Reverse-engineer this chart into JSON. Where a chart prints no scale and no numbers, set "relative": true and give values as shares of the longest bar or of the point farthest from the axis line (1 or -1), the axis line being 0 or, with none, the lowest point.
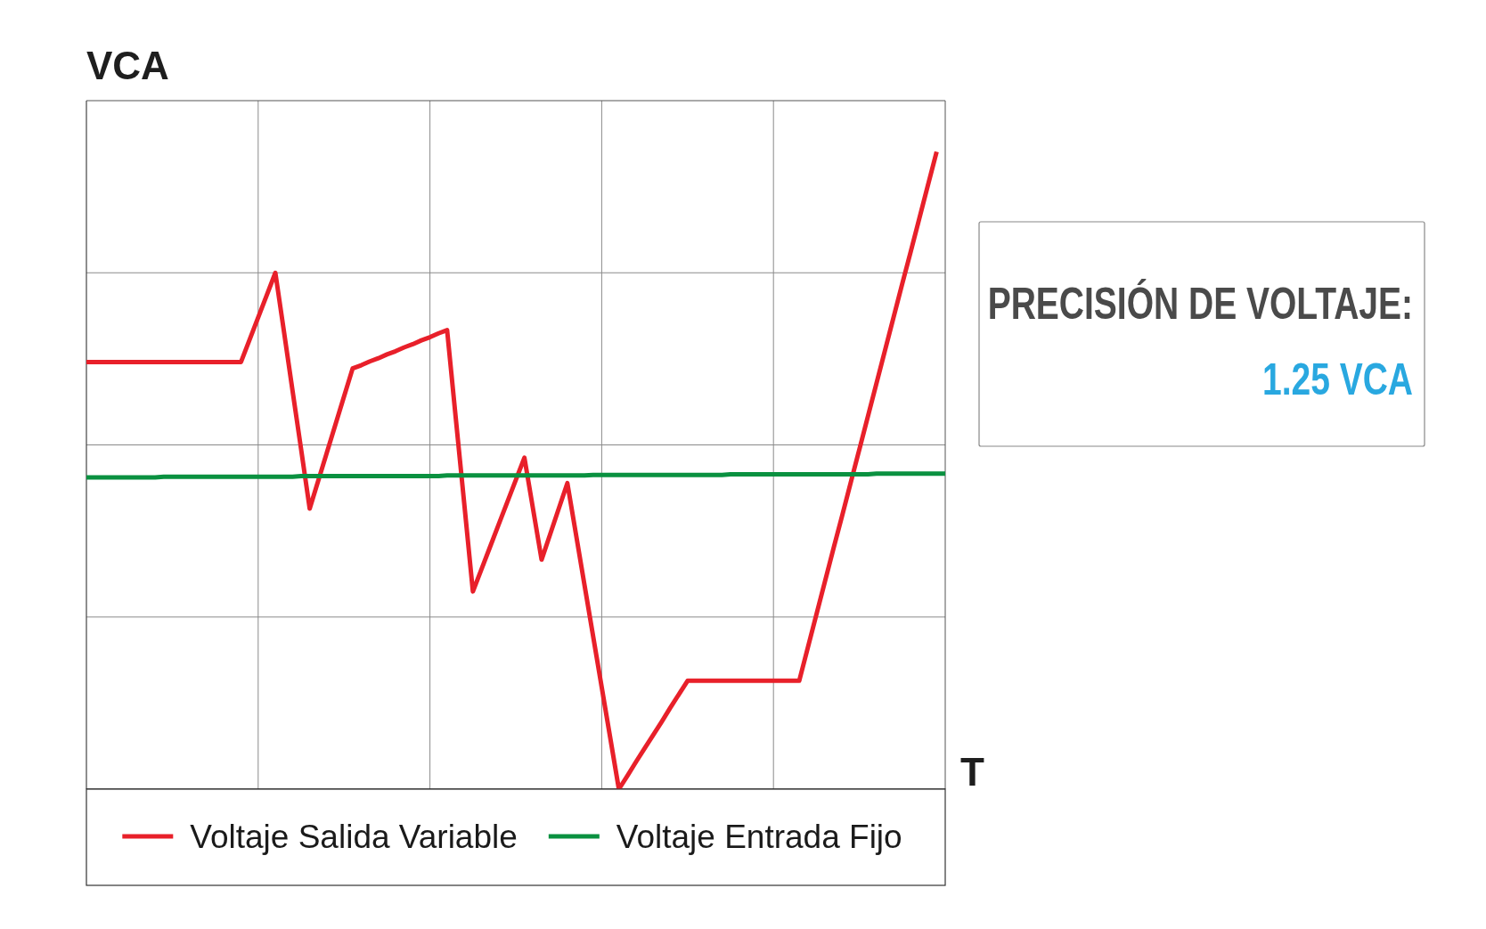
{
  "chart_data": {
    "type": "line",
    "xlabel": "T",
    "ylabel": "VCA",
    "relative": true,
    "grid": true,
    "legend": "bottom",
    "categories": [
      null,
      null,
      null,
      null,
      null,
      null,
      null,
      null,
      null,
      null,
      null,
      null,
      null,
      null,
      null,
      null,
      null,
      null,
      null,
      null,
      null,
      null,
      null,
      null,
      null,
      null,
      null,
      null,
      null,
      null,
      null,
      null,
      null,
      null,
      null,
      null,
      null,
      null,
      null,
      null,
      null,
      null,
      null,
      null,
      null,
      null,
      null,
      null,
      null,
      null,
      null,
      null,
      null,
      null,
      null,
      null,
      null,
      null,
      null,
      null,
      null,
      null,
      null,
      null,
      null,
      null,
      null,
      null,
      null,
      null,
      null,
      null,
      null,
      null,
      null,
      null,
      null,
      null,
      null,
      null,
      null,
      null,
      null,
      null,
      null,
      null,
      null,
      null,
      null,
      null,
      null,
      null,
      null,
      null,
      null,
      null,
      null,
      null,
      null,
      null,
      null
    ],
    "series": [
      {
        "name": "Voltaje Salida Variable",
        "color": "#e8202a",
        "values": [
          0.67,
          0.67,
          0.67,
          0.67,
          0.67,
          0.67,
          0.67,
          0.67,
          0.67,
          0.67,
          0.67,
          0.67,
          0.67,
          0.67,
          0.67,
          0.67,
          0.67,
          0.67,
          0.67,
          0.705,
          0.74,
          0.775,
          0.81,
          0.718,
          0.625,
          0.533,
          0.44,
          0.484,
          0.528,
          0.572,
          0.616,
          0.66,
          0.665,
          0.671,
          0.676,
          0.682,
          0.687,
          0.693,
          0.698,
          0.704,
          0.709,
          0.715,
          0.72,
          0.583,
          0.447,
          0.31,
          0.345,
          0.38,
          0.415,
          0.45,
          0.485,
          0.52,
          0.44,
          0.36,
          0.4,
          0.44,
          0.48,
          0.4,
          0.32,
          0.24,
          0.16,
          0.08,
          0,
          0.021,
          0.043,
          0.064,
          0.085,
          0.106,
          0.128,
          0.149,
          0.17,
          0.17,
          0.17,
          0.17,
          0.17,
          0.17,
          0.17,
          0.17,
          0.17,
          0.17,
          0.17,
          0.17,
          0.17,
          0.17,
          0.222,
          0.274,
          0.326,
          0.378,
          0.429,
          0.481,
          0.533,
          0.585,
          0.637,
          0.689,
          0.741,
          0.793,
          0.844,
          0.896,
          0.948,
          1,
          null
        ]
      },
      {
        "name": "Voltaje Entrada Fijo",
        "color": "#0a9140",
        "values": [
          0.489,
          0.489,
          0.489,
          0.489,
          0.489,
          0.489,
          0.489,
          0.489,
          0.489,
          0.49,
          0.49,
          0.49,
          0.49,
          0.49,
          0.49,
          0.49,
          0.49,
          0.49,
          0.49,
          0.49,
          0.49,
          0.49,
          0.49,
          0.49,
          0.49,
          0.491,
          0.491,
          0.491,
          0.491,
          0.491,
          0.491,
          0.491,
          0.491,
          0.491,
          0.491,
          0.491,
          0.491,
          0.491,
          0.491,
          0.491,
          0.491,
          0.491,
          0.492,
          0.492,
          0.492,
          0.492,
          0.492,
          0.492,
          0.492,
          0.492,
          0.492,
          0.492,
          0.492,
          0.492,
          0.492,
          0.492,
          0.492,
          0.492,
          0.492,
          0.493,
          0.493,
          0.493,
          0.493,
          0.493,
          0.493,
          0.493,
          0.493,
          0.493,
          0.493,
          0.493,
          0.493,
          0.493,
          0.493,
          0.493,
          0.493,
          0.494,
          0.494,
          0.494,
          0.494,
          0.494,
          0.494,
          0.494,
          0.494,
          0.494,
          0.494,
          0.494,
          0.494,
          0.494,
          0.494,
          0.494,
          0.494,
          0.494,
          0.495,
          0.495,
          0.495,
          0.495,
          0.495,
          0.495,
          0.495,
          0.495,
          0.495
        ]
      }
    ],
    "annotations": [
      "PRECISIÓN DE VOLTAJE:",
      "1.25 VCA"
    ]
  }
}
